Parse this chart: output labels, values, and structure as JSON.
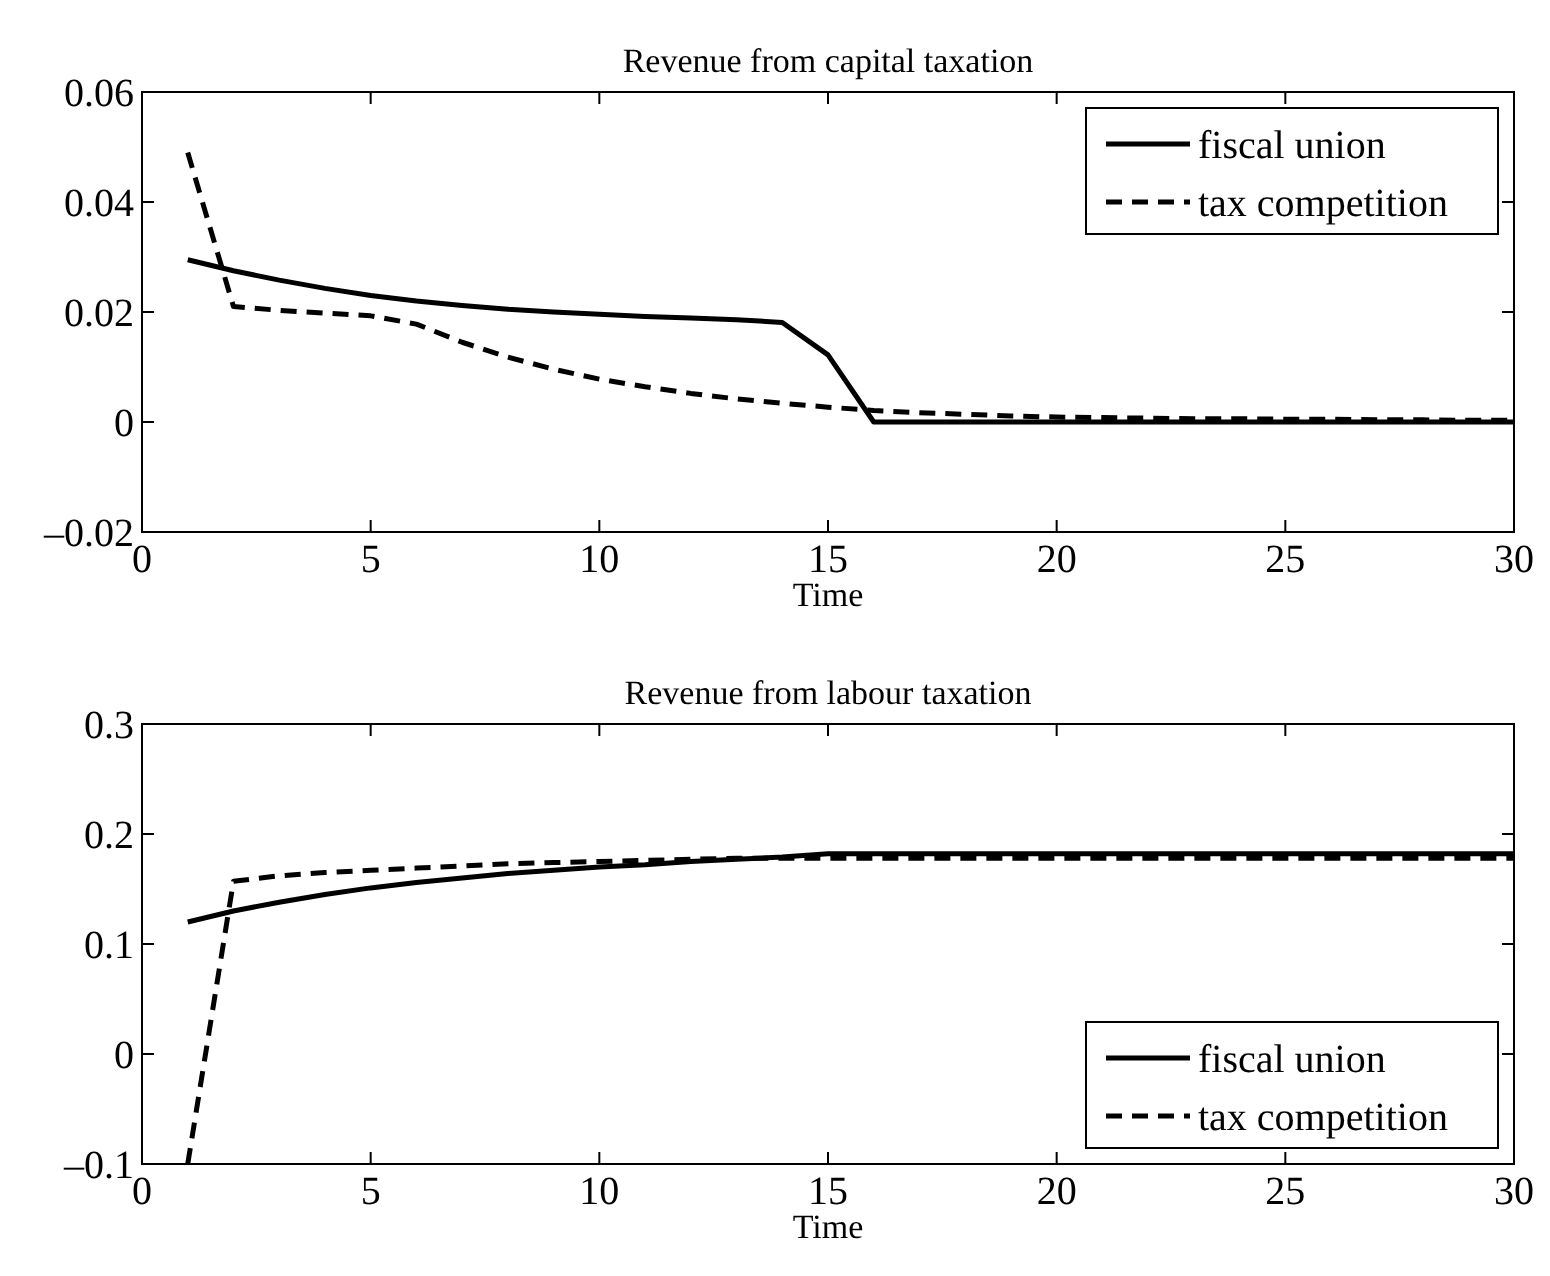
{
  "chart_data": [
    {
      "type": "line",
      "title": "Revenue from capital taxation",
      "xlabel": "Time",
      "x": [
        1,
        2,
        3,
        4,
        5,
        6,
        7,
        8,
        9,
        10,
        11,
        12,
        13,
        14,
        15,
        16,
        17,
        18,
        19,
        20,
        21,
        22,
        23,
        24,
        25,
        26,
        27,
        28,
        29,
        30
      ],
      "xlim": [
        0,
        30
      ],
      "xticks": [
        0,
        5,
        10,
        15,
        20,
        25,
        30
      ],
      "ylim": [
        -0.02,
        0.06
      ],
      "yticks": [
        {
          "value": -0.02,
          "label": "–0.02"
        },
        0,
        0.02,
        0.04,
        0.06
      ],
      "legend": "top right",
      "grid": false,
      "series": [
        {
          "name": "fiscal union",
          "color": "#000000",
          "line_style": "solid",
          "values": [
            0.0295,
            0.0275,
            0.0258,
            0.0243,
            0.023,
            0.022,
            0.0212,
            0.0205,
            0.02,
            0.0196,
            0.0192,
            0.0189,
            0.0186,
            0.0181,
            0.0122,
            0,
            0,
            0,
            0,
            0,
            0,
            0,
            0,
            0,
            0,
            0,
            0,
            0,
            0,
            0
          ]
        },
        {
          "name": "tax competition",
          "color": "#000000",
          "line_style": "dashed",
          "values": [
            0.049,
            0.021,
            0.0203,
            0.0198,
            0.0193,
            0.0178,
            0.0145,
            0.0118,
            0.0096,
            0.0078,
            0.0064,
            0.0052,
            0.0042,
            0.0034,
            0.0027,
            0.0021,
            0.0017,
            0.0014,
            0.0011,
            0.0009,
            0.0008,
            0.0007,
            0.0006,
            0.0006,
            0.0005,
            0.0005,
            0.0004,
            0.0004,
            0.0003,
            0.0003
          ]
        }
      ]
    },
    {
      "type": "line",
      "title": "Revenue from labour taxation",
      "xlabel": "Time",
      "x": [
        1,
        2,
        3,
        4,
        5,
        6,
        7,
        8,
        9,
        10,
        11,
        12,
        13,
        14,
        15,
        16,
        17,
        18,
        19,
        20,
        21,
        22,
        23,
        24,
        25,
        26,
        27,
        28,
        29,
        30
      ],
      "xlim": [
        0,
        30
      ],
      "xticks": [
        0,
        5,
        10,
        15,
        20,
        25,
        30
      ],
      "ylim": [
        -0.1,
        0.3
      ],
      "yticks": [
        {
          "value": -0.1,
          "label": "–0.1"
        },
        0,
        0.1,
        0.2,
        0.3
      ],
      "legend": "bottom right",
      "grid": false,
      "series": [
        {
          "name": "fiscal union",
          "color": "#000000",
          "line_style": "solid",
          "values": [
            0.12,
            0.13,
            0.138,
            0.145,
            0.151,
            0.156,
            0.16,
            0.164,
            0.167,
            0.17,
            0.172,
            0.175,
            0.177,
            0.179,
            0.182,
            0.182,
            0.182,
            0.182,
            0.182,
            0.182,
            0.182,
            0.182,
            0.182,
            0.182,
            0.182,
            0.182,
            0.182,
            0.182,
            0.182,
            0.182
          ]
        },
        {
          "name": "tax competition",
          "color": "#000000",
          "line_style": "dashed",
          "values": [
            -0.1,
            0.157,
            0.162,
            0.165,
            0.167,
            0.169,
            0.171,
            0.173,
            0.174,
            0.175,
            0.176,
            0.177,
            0.178,
            0.178,
            0.178,
            0.178,
            0.178,
            0.178,
            0.178,
            0.178,
            0.178,
            0.178,
            0.178,
            0.178,
            0.178,
            0.178,
            0.178,
            0.178,
            0.178,
            0.178
          ]
        }
      ]
    }
  ]
}
